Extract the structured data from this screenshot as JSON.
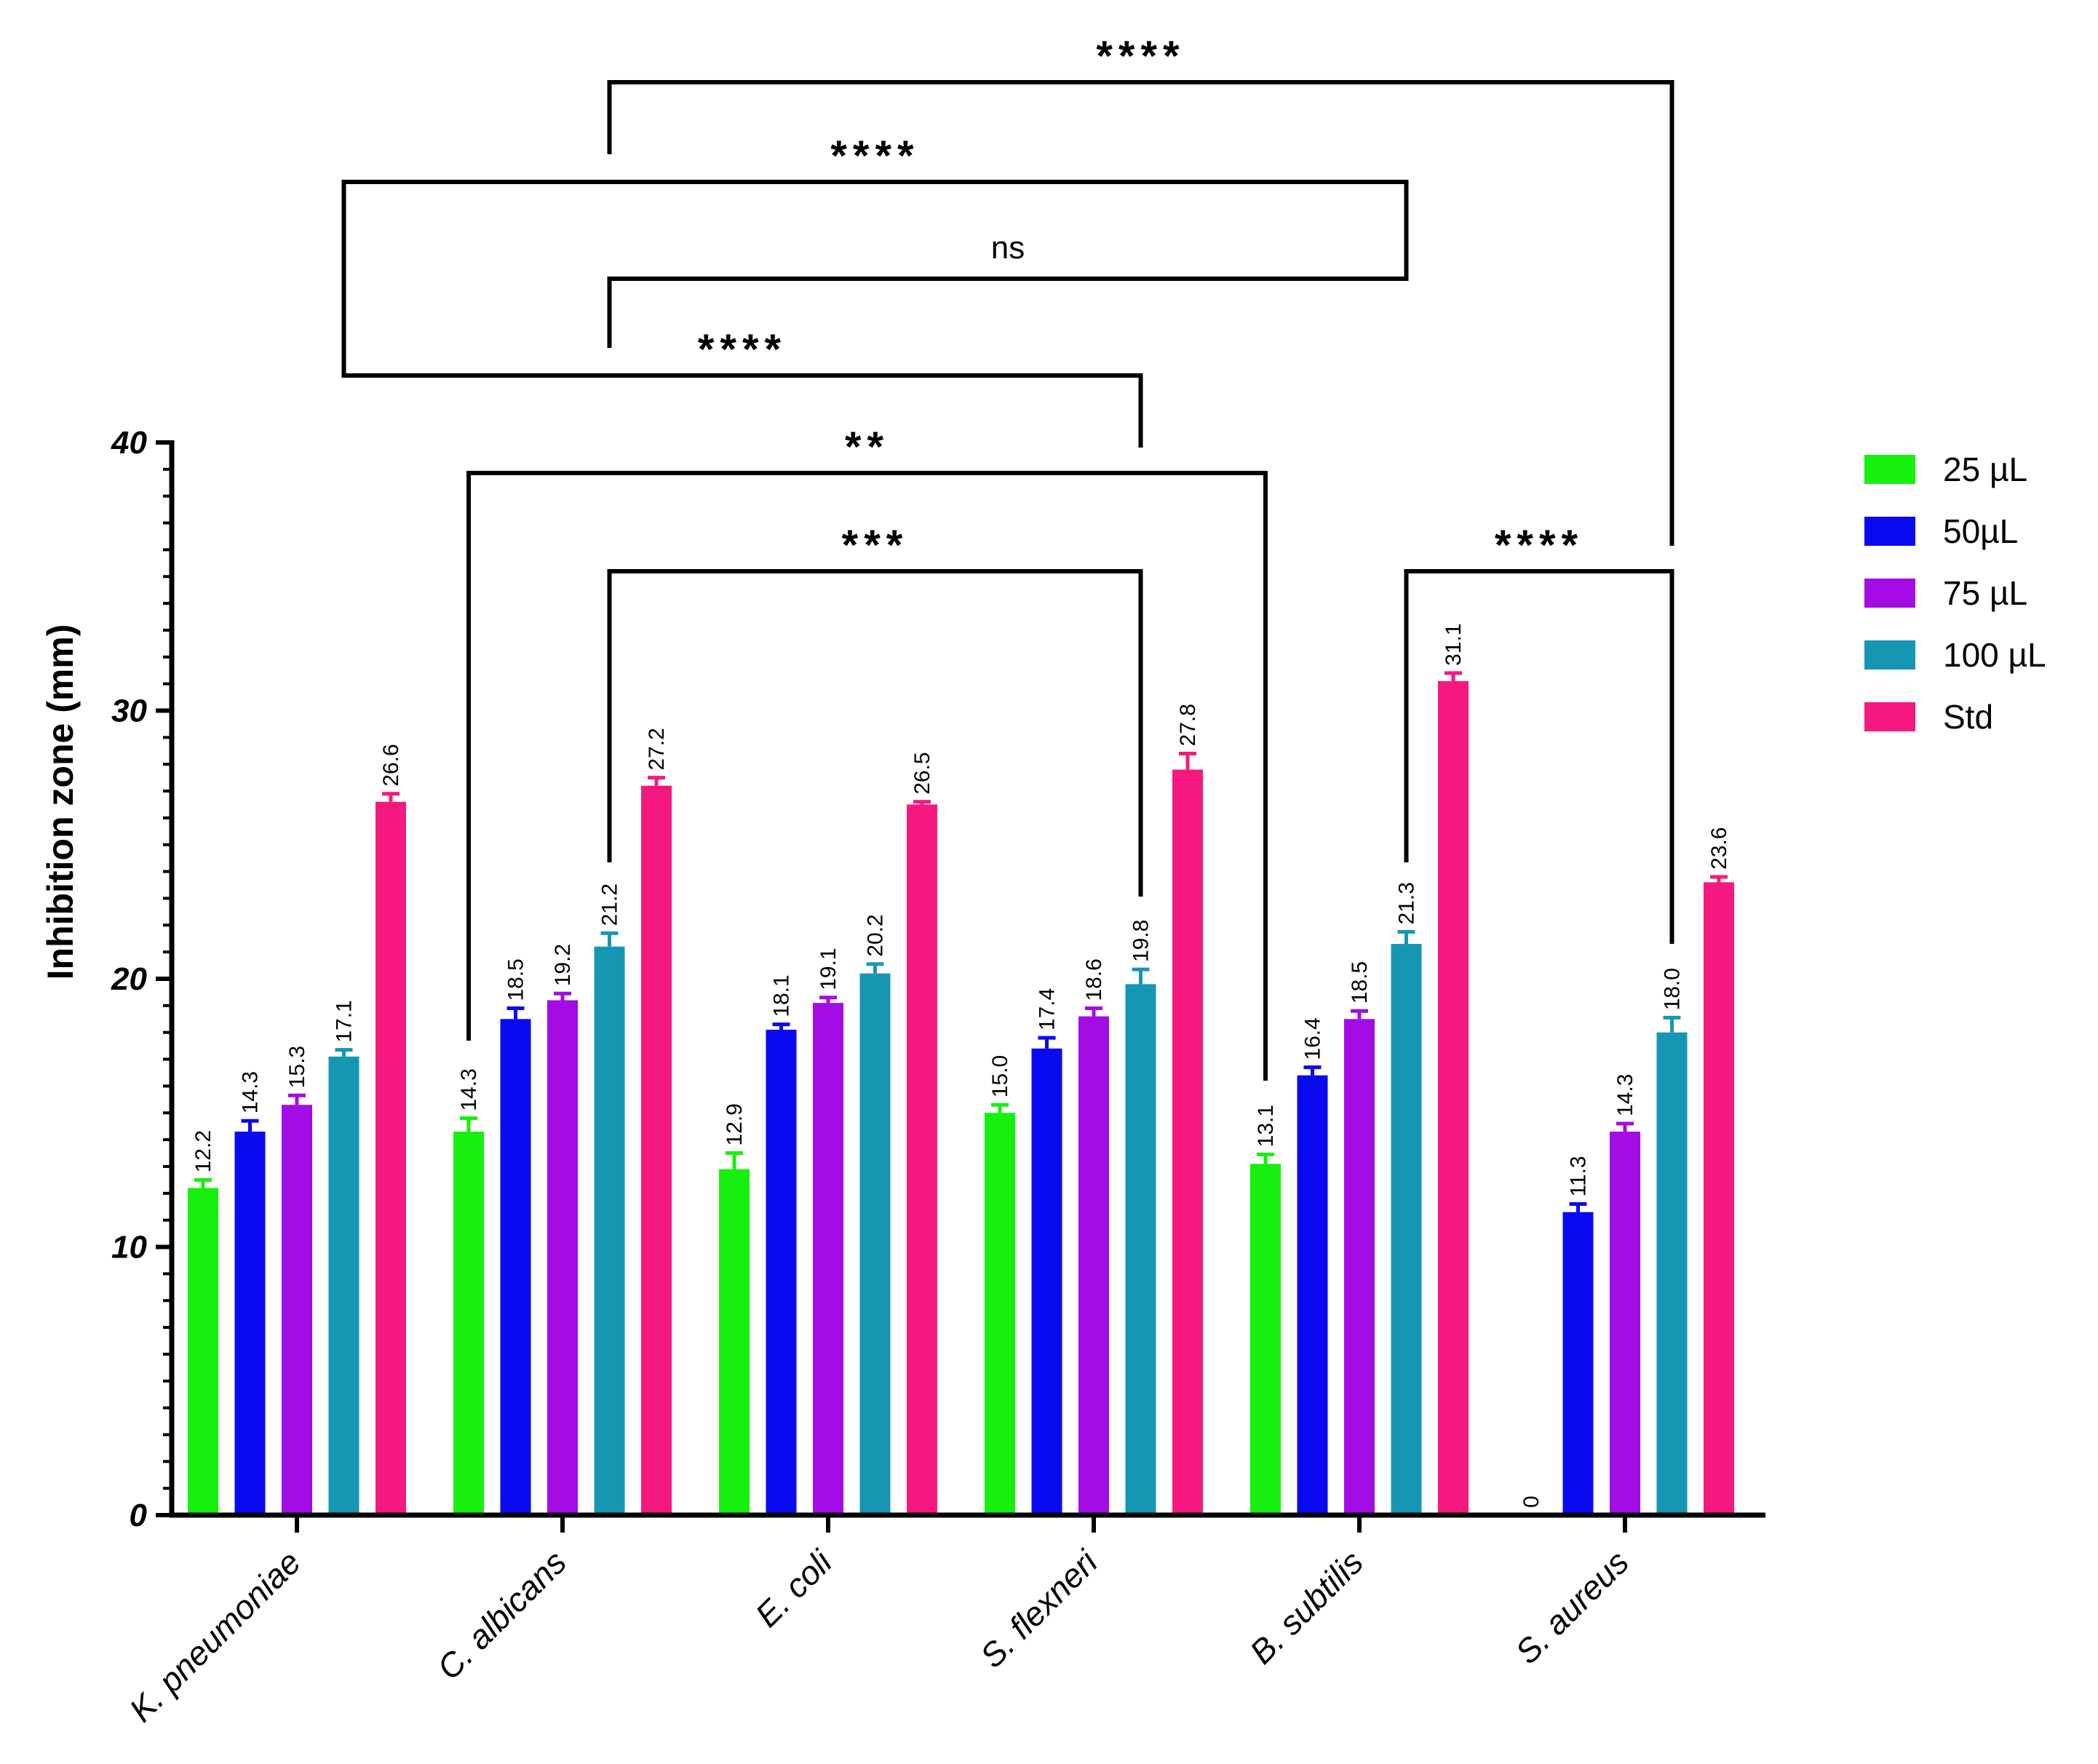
{
  "chart_data": {
    "type": "bar",
    "title": "",
    "xlabel": "",
    "ylabel": "Inhibition zone (mm)",
    "ylim": [
      0,
      40
    ],
    "yticks": [
      0,
      10,
      20,
      30,
      40
    ],
    "categories": [
      "K. pneumoniae",
      "C. albicans",
      "E. coli",
      "S. flexneri",
      "B. subtilis",
      "S. aureus"
    ],
    "series": [
      {
        "name": "25 µL",
        "color": "#16f00e",
        "values": [
          12.2,
          14.3,
          12.9,
          15.0,
          13.1,
          0
        ],
        "errors": [
          0.3,
          0.5,
          0.6,
          0.3,
          0.35,
          0
        ],
        "labels": [
          "12.2",
          "14.3",
          "12.9",
          "15.0",
          "13.1",
          "0"
        ]
      },
      {
        "name": "50µL",
        "color": "#0a0af2",
        "values": [
          14.3,
          18.5,
          18.1,
          17.4,
          16.4,
          11.3
        ],
        "errors": [
          0.4,
          0.4,
          0.2,
          0.4,
          0.3,
          0.3
        ],
        "labels": [
          "14.3",
          "18.5",
          "18.1",
          "17.4",
          "16.4",
          "11.3"
        ]
      },
      {
        "name": "75 µL",
        "color": "#a40ce4",
        "values": [
          15.3,
          19.2,
          19.1,
          18.6,
          18.5,
          14.3
        ],
        "errors": [
          0.35,
          0.25,
          0.2,
          0.3,
          0.3,
          0.3
        ],
        "labels": [
          "15.3",
          "19.2",
          "19.1",
          "18.6",
          "18.5",
          "14.3"
        ]
      },
      {
        "name": "100 µL",
        "color": "#1597b3",
        "values": [
          17.1,
          21.2,
          20.2,
          19.8,
          21.3,
          18.0
        ],
        "errors": [
          0.25,
          0.5,
          0.35,
          0.55,
          0.45,
          0.55
        ],
        "labels": [
          "17.1",
          "21.2",
          "20.2",
          "19.8",
          "21.3",
          "18.0"
        ]
      },
      {
        "name": "Std",
        "color": "#f5197f",
        "values": [
          26.6,
          27.2,
          26.5,
          27.8,
          31.1,
          23.6
        ],
        "errors": [
          0.3,
          0.3,
          0.1,
          0.6,
          0.3,
          0.2
        ],
        "labels": [
          "26.6",
          "27.2",
          "26.5",
          "27.8",
          "31.1",
          "23.6"
        ]
      }
    ],
    "legend_position": "right",
    "significance": [
      {
        "label": "****",
        "from_category": 1,
        "from_series": 3,
        "to_category": 5,
        "to_series": 3
      },
      {
        "label": "****",
        "from_category": 0,
        "from_series": 3,
        "to_category": 4,
        "to_series": 3
      },
      {
        "label": "ns",
        "from_category": 1,
        "from_series": 3,
        "to_category": 4,
        "to_series": 3
      },
      {
        "label": "****",
        "from_category": 0,
        "from_series": 3,
        "to_category": 3,
        "to_series": 3
      },
      {
        "label": "**",
        "from_category": 1,
        "from_series": 0,
        "to_category": 4,
        "to_series": 0
      },
      {
        "label": "***",
        "from_category": 1,
        "from_series": 3,
        "to_category": 3,
        "to_series": 3
      },
      {
        "label": "****",
        "from_category": 4,
        "from_series": 3,
        "to_category": 5,
        "to_series": 3
      }
    ]
  }
}
